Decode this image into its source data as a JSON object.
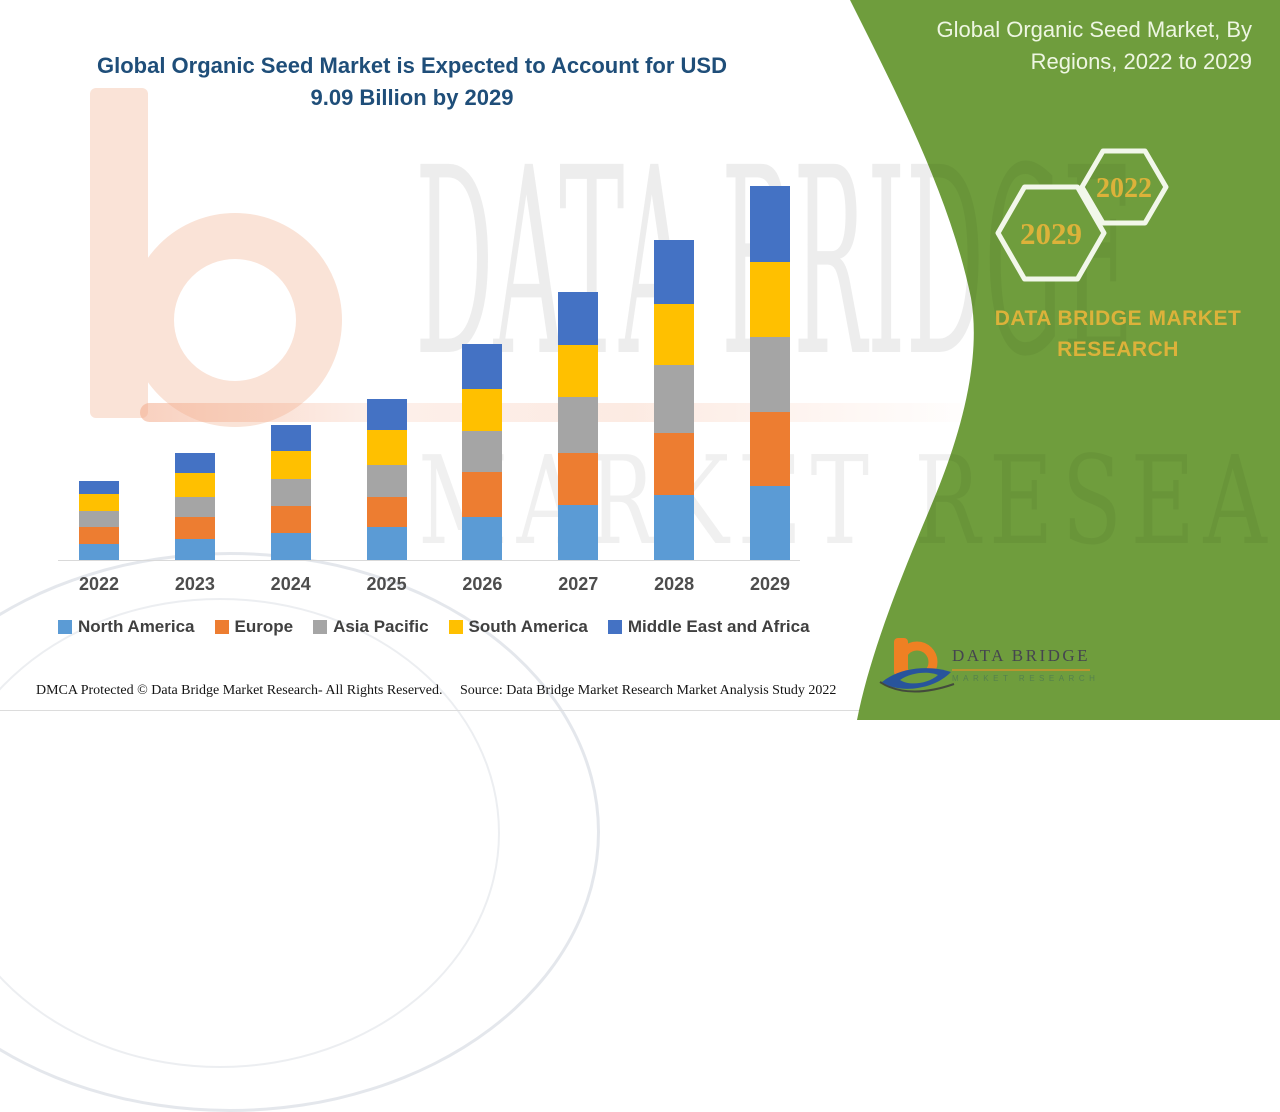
{
  "title": {
    "line1": "Global Organic Seed Market is Expected to Account for USD",
    "line2": "9.09 Billion by 2029"
  },
  "panel": {
    "title_line1": "Global Organic Seed Market, By",
    "title_line2": "Regions, 2022 to 2029",
    "hexagon_back_label": "2022",
    "hexagon_front_label": "2029",
    "brand_line1": "DATA BRIDGE MARKET",
    "brand_line2": "RESEARCH",
    "logo_name": "DATA BRIDGE",
    "logo_subtitle": "MARKET RESEARCH",
    "colors": {
      "green": "#6f9d3d",
      "gold": "#dcb23a",
      "hex_stroke": "#f2f7ea"
    }
  },
  "watermark": {
    "line1": "DATA BRIDGE",
    "line2": "MARKET RESEARCH"
  },
  "footer": {
    "left": "DMCA Protected © Data Bridge Market Research- All Rights Reserved.",
    "right": "Source: Data Bridge Market Research Market Analysis Study 2022"
  },
  "chart_data": {
    "type": "bar",
    "stacked": true,
    "title": "Global Organic Seed Market is Expected to Account for USD 9.09 Billion by 2029",
    "unit": "USD Billion",
    "categories": [
      "2022",
      "2023",
      "2024",
      "2025",
      "2026",
      "2027",
      "2028",
      "2029"
    ],
    "series": [
      {
        "name": "North America",
        "color": "#5B9BD5",
        "values": [
          0.38,
          0.5,
          0.66,
          0.81,
          1.05,
          1.33,
          1.58,
          1.81
        ]
      },
      {
        "name": "Europe",
        "color": "#ED7D31",
        "values": [
          0.42,
          0.55,
          0.65,
          0.73,
          1.1,
          1.28,
          1.52,
          1.78
        ]
      },
      {
        "name": "Asia Pacific",
        "color": "#A5A5A5",
        "values": [
          0.39,
          0.49,
          0.66,
          0.78,
          0.99,
          1.36,
          1.65,
          1.84
        ]
      },
      {
        "name": "South America",
        "color": "#FFC000",
        "values": [
          0.41,
          0.57,
          0.68,
          0.84,
          1.01,
          1.26,
          1.48,
          1.83
        ]
      },
      {
        "name": "Middle East and Africa",
        "color": "#4472C4",
        "values": [
          0.33,
          0.49,
          0.63,
          0.77,
          1.1,
          1.3,
          1.56,
          1.83
        ]
      }
    ],
    "totals": [
      1.93,
      2.6,
      3.28,
      3.93,
      5.25,
      6.53,
      7.79,
      9.09
    ],
    "xlabel": "",
    "ylabel": "",
    "axis": {
      "baseline_visible": true,
      "gridlines": false,
      "y_tick_labels_visible": false
    },
    "legend_position": "bottom"
  }
}
